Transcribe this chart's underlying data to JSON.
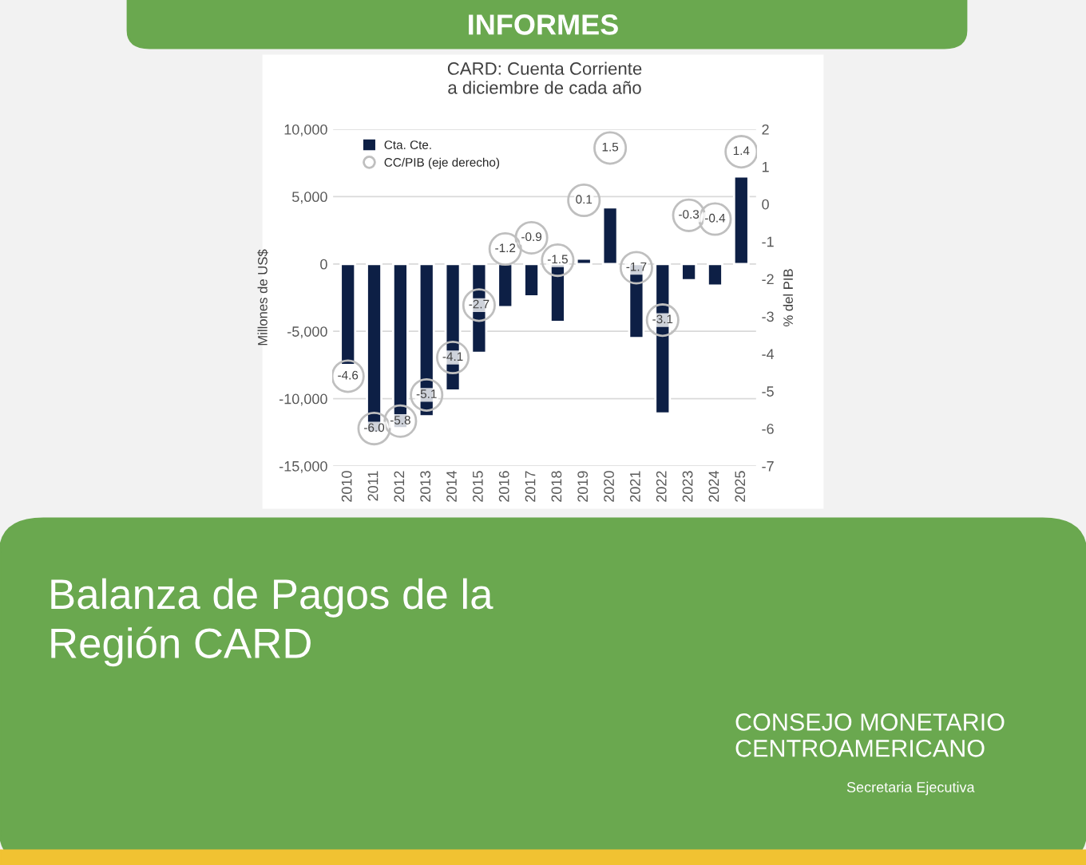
{
  "chart_data": {
    "type": "bar",
    "title": "CARD: Cuenta Corriente\na diciembre de cada año",
    "ylabel": "Millones de US$",
    "y2label": "% del PIB",
    "categories": [
      "2010",
      "2011",
      "2012",
      "2013",
      "2014",
      "2015",
      "2016",
      "2017",
      "2018",
      "2019",
      "2020",
      "2021",
      "2022",
      "2023",
      "2024",
      "2025"
    ],
    "series": [
      {
        "name": "Cta. Cte.",
        "color": "#0d1f45",
        "values": [
          -7500,
          -12500,
          -12200,
          -11300,
          -9400,
          -6600,
          -3200,
          -2400,
          -4300,
          400,
          4200,
          -5500,
          -11100,
          -1200,
          -1600,
          6500
        ]
      },
      {
        "name": "CC/PIB (eje derecho)",
        "type": "scatter",
        "axis": "y2",
        "color": "#bfbfbf",
        "values": [
          -4.6,
          -6.0,
          -5.8,
          -5.1,
          -4.1,
          -2.7,
          -1.2,
          -0.9,
          -1.5,
          0.1,
          1.5,
          -1.7,
          -3.1,
          -0.3,
          -0.4,
          1.4
        ],
        "value_labels": [
          "-4.6",
          "-6.0",
          "-5.8",
          "-5.1",
          "-4.1",
          "-2.7",
          "-1.2",
          "-0.9",
          "-1.5",
          "0.1",
          "1.5",
          "-1.7",
          "-3.1",
          "-0.3",
          "-0.4",
          "1.4"
        ]
      }
    ],
    "ylim": [
      -15000,
      10000
    ],
    "yticks": [
      {
        "value": -15000,
        "label": "-15,000"
      },
      {
        "value": -10000,
        "label": "-10,000"
      },
      {
        "value": -5000,
        "label": "-5,000"
      },
      0,
      {
        "value": 5000,
        "label": "5,000"
      },
      {
        "value": 10000,
        "label": "10,000"
      }
    ],
    "y2lim": [
      -7,
      2
    ],
    "y2ticks": [
      -7,
      -6,
      -5,
      -4,
      -3,
      -2,
      -1,
      0,
      1,
      2
    ],
    "grid": "y",
    "legend": "top left",
    "marker": "circle",
    "annotations": [
      "INFORMES",
      "Balanza de Pagos de la\nRegión CARD",
      "CONSEJO MONETARIO\nCENTROAMERICANO",
      "Secretaria Ejecutiva"
    ]
  }
}
